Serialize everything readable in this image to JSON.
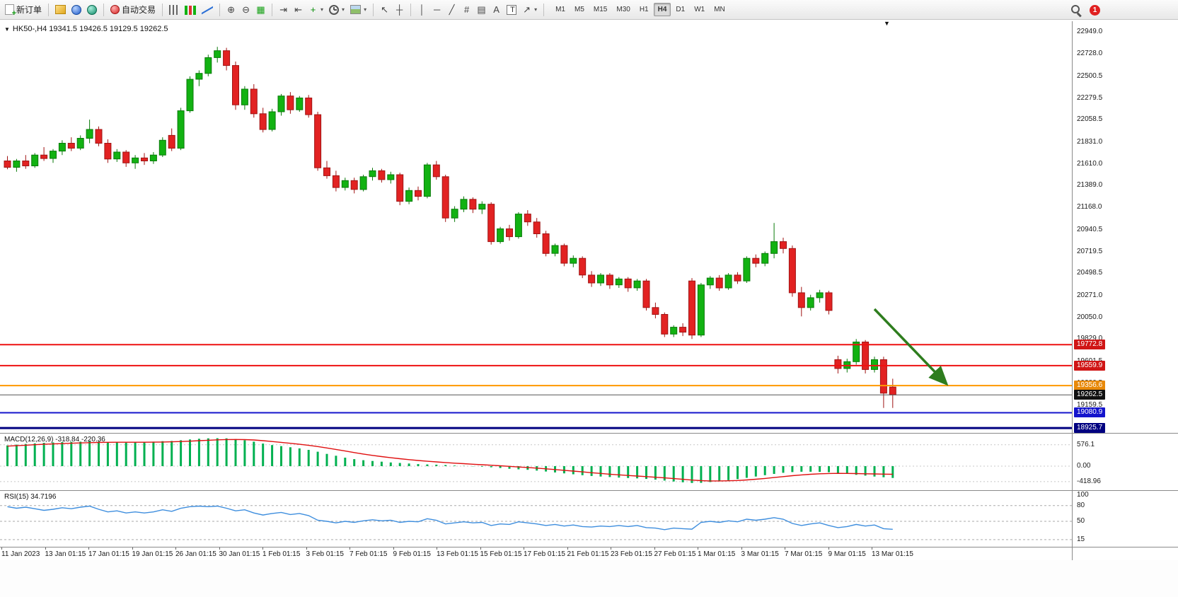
{
  "toolbar": {
    "items": [
      {
        "name": "new-order",
        "icon": "doc",
        "label": "新订单"
      },
      {
        "sep": true
      },
      {
        "name": "charts-panel",
        "icon": "gold"
      },
      {
        "name": "profiles",
        "icon": "blue-orb"
      },
      {
        "name": "market-watch",
        "icon": "teal-orb"
      },
      {
        "sep": true
      },
      {
        "name": "autotrading",
        "icon": "red-dot",
        "label": "自动交易"
      },
      {
        "sep": true
      },
      {
        "name": "bar-chart",
        "icon": "bars"
      },
      {
        "name": "candlestick-chart",
        "icon": "candles"
      },
      {
        "name": "line-chart",
        "icon": "linechart"
      },
      {
        "sep": true
      },
      {
        "name": "zoom-in",
        "glyph": "⊕"
      },
      {
        "name": "zoom-out",
        "glyph": "⊖"
      },
      {
        "name": "tile-windows",
        "glyph": "▦",
        "glyph_color": "#14A014"
      },
      {
        "sep": true
      },
      {
        "name": "auto-scroll",
        "glyph": "⇥"
      },
      {
        "name": "chart-shift",
        "glyph": "⇤"
      },
      {
        "name": "indicators",
        "glyph": "+",
        "glyph_color": "#0B8F0B",
        "caret": true
      },
      {
        "name": "periods",
        "icon": "clock",
        "caret": true
      },
      {
        "name": "templates",
        "icon": "image",
        "caret": true
      },
      {
        "sep": true
      },
      {
        "name": "cursor",
        "glyph": "↖"
      },
      {
        "name": "crosshair",
        "glyph": "┼"
      },
      {
        "sep": true
      },
      {
        "name": "vertical-line-tool",
        "glyph": "│"
      },
      {
        "name": "horizontal-line-tool",
        "glyph": "─"
      },
      {
        "name": "trendline-tool",
        "glyph": "╱"
      },
      {
        "name": "fibonacci-tool",
        "glyph": "#"
      },
      {
        "name": "grid-tool",
        "glyph": "▤"
      },
      {
        "name": "text-tool",
        "glyph": "A"
      },
      {
        "name": "label-tool",
        "icon": "label"
      },
      {
        "name": "arrows-tool",
        "glyph": "↗",
        "caret": true
      },
      {
        "sep": true
      }
    ],
    "timeframes": [
      "M1",
      "M5",
      "M15",
      "M30",
      "H1",
      "H4",
      "D1",
      "W1",
      "MN"
    ],
    "active_timeframe": "H4",
    "notification_count": "1"
  },
  "chart": {
    "ohlc_header": "HK50-,H4 19341.5 19426.5 19129.5 19262.5",
    "expand_glyph": "▼",
    "marker_glyph": "▼",
    "macd_label": "MACD(12,26,9) -318.84 -220.36",
    "rsi_label": "RSI(15) 34.7196"
  },
  "chart_data": [
    {
      "type": "candlestick",
      "title": "HK50-,H4",
      "timeframe": "H4",
      "open": 19341.5,
      "high": 19426.5,
      "low": 19129.5,
      "close": 19262.5,
      "ylim": [
        18876,
        23060
      ],
      "colors": {
        "up": "#12B212",
        "up_border": "#0A7A0A",
        "down": "#E22222",
        "down_border": "#A01414"
      },
      "y_ticks": [
        22949.0,
        22728.0,
        22500.5,
        22279.5,
        22058.5,
        21831.0,
        21610.0,
        21389.0,
        21168.0,
        20940.5,
        20719.5,
        20498.5,
        20271.0,
        20050.0,
        19829.0,
        19601.5,
        19380.5,
        19159.5
      ],
      "x_labels": [
        "11 Jan 2023",
        "13 Jan 01:15",
        "17 Jan 01:15",
        "19 Jan 01:15",
        "26 Jan 01:15",
        "30 Jan 01:15",
        "1 Feb 01:15",
        "3 Feb 01:15",
        "7 Feb 01:15",
        "9 Feb 01:15",
        "13 Feb 01:15",
        "15 Feb 01:15",
        "17 Feb 01:15",
        "21 Feb 01:15",
        "23 Feb 01:15",
        "27 Feb 01:15",
        "1 Mar 01:15",
        "3 Mar 01:15",
        "7 Mar 01:15",
        "9 Mar 01:15",
        "13 Mar 01:15"
      ],
      "hlines": [
        {
          "price": 19772.8,
          "label": "19772.8",
          "color": "#EE1111",
          "bg": "#D01616",
          "width": 2
        },
        {
          "price": 19559.9,
          "label": "19559.9",
          "color": "#EE1111",
          "bg": "#D01616",
          "width": 2
        },
        {
          "price": 19356.6,
          "label": "19356.6",
          "color": "#FF9800",
          "bg": "#E8890A",
          "width": 2
        },
        {
          "price": 19262.5,
          "label": "19262.5",
          "color": "#555555",
          "bg": "#111111",
          "width": 1
        },
        {
          "price": 19080.9,
          "label": "19080.9",
          "color": "#1414CC",
          "bg": "#1414CC",
          "width": 2
        },
        {
          "price": 18925.7,
          "label": "18925.7",
          "color": "#000080",
          "bg": "#000080",
          "width": 3
        }
      ],
      "arrow": {
        "from": [
          1236,
          437
        ],
        "to": [
          1338,
          543
        ],
        "color": "#2E7D1E"
      },
      "ohlc": [
        [
          21640,
          21690,
          21555,
          21575
        ],
        [
          21575,
          21660,
          21530,
          21640
        ],
        [
          21640,
          21700,
          21560,
          21590
        ],
        [
          21590,
          21720,
          21570,
          21700
        ],
        [
          21700,
          21780,
          21640,
          21665
        ],
        [
          21665,
          21760,
          21620,
          21740
        ],
        [
          21740,
          21850,
          21700,
          21820
        ],
        [
          21820,
          21880,
          21740,
          21770
        ],
        [
          21770,
          21900,
          21750,
          21870
        ],
        [
          21870,
          22060,
          21820,
          21960
        ],
        [
          21960,
          21990,
          21790,
          21820
        ],
        [
          21820,
          21860,
          21620,
          21660
        ],
        [
          21660,
          21760,
          21630,
          21730
        ],
        [
          21730,
          21750,
          21580,
          21620
        ],
        [
          21620,
          21700,
          21560,
          21670
        ],
        [
          21670,
          21720,
          21600,
          21640
        ],
        [
          21640,
          21730,
          21610,
          21700
        ],
        [
          21700,
          21880,
          21680,
          21850
        ],
        [
          21900,
          21970,
          21740,
          21770
        ],
        [
          21770,
          22180,
          21750,
          22150
        ],
        [
          22150,
          22500,
          22130,
          22470
        ],
        [
          22470,
          22560,
          22400,
          22530
        ],
        [
          22530,
          22720,
          22500,
          22690
        ],
        [
          22690,
          22800,
          22640,
          22760
        ],
        [
          22760,
          22790,
          22560,
          22610
        ],
        [
          22610,
          22650,
          22160,
          22210
        ],
        [
          22210,
          22400,
          22160,
          22370
        ],
        [
          22370,
          22420,
          22080,
          22120
        ],
        [
          22120,
          22180,
          21930,
          21960
        ],
        [
          21960,
          22170,
          21940,
          22140
        ],
        [
          22140,
          22320,
          22100,
          22300
        ],
        [
          22300,
          22340,
          22120,
          22160
        ],
        [
          22160,
          22300,
          22140,
          22280
        ],
        [
          22280,
          22310,
          22080,
          22110
        ],
        [
          22110,
          22140,
          21540,
          21570
        ],
        [
          21570,
          21640,
          21460,
          21490
        ],
        [
          21490,
          21540,
          21330,
          21370
        ],
        [
          21370,
          21470,
          21340,
          21440
        ],
        [
          21440,
          21470,
          21310,
          21350
        ],
        [
          21350,
          21500,
          21330,
          21480
        ],
        [
          21480,
          21570,
          21440,
          21540
        ],
        [
          21540,
          21560,
          21420,
          21450
        ],
        [
          21450,
          21530,
          21410,
          21500
        ],
        [
          21500,
          21520,
          21190,
          21230
        ],
        [
          21230,
          21370,
          21200,
          21340
        ],
        [
          21340,
          21380,
          21240,
          21280
        ],
        [
          21280,
          21620,
          21260,
          21600
        ],
        [
          21600,
          21640,
          21450,
          21480
        ],
        [
          21480,
          21500,
          21020,
          21060
        ],
        [
          21060,
          21180,
          21020,
          21150
        ],
        [
          21150,
          21280,
          21120,
          21250
        ],
        [
          21250,
          21270,
          21110,
          21150
        ],
        [
          21150,
          21230,
          21100,
          21200
        ],
        [
          21200,
          21220,
          20790,
          20820
        ],
        [
          20820,
          20970,
          20800,
          20950
        ],
        [
          20950,
          20990,
          20830,
          20870
        ],
        [
          20870,
          21120,
          20850,
          21100
        ],
        [
          21100,
          21140,
          20980,
          21020
        ],
        [
          21020,
          21060,
          20860,
          20900
        ],
        [
          20900,
          20930,
          20670,
          20700
        ],
        [
          20700,
          20800,
          20670,
          20780
        ],
        [
          20780,
          20800,
          20570,
          20600
        ],
        [
          20600,
          20680,
          20560,
          20650
        ],
        [
          20650,
          20670,
          20450,
          20480
        ],
        [
          20480,
          20520,
          20360,
          20400
        ],
        [
          20400,
          20500,
          20370,
          20480
        ],
        [
          20480,
          20500,
          20340,
          20380
        ],
        [
          20380,
          20460,
          20350,
          20440
        ],
        [
          20440,
          20460,
          20310,
          20350
        ],
        [
          20350,
          20440,
          20320,
          20420
        ],
        [
          20420,
          20440,
          20120,
          20150
        ],
        [
          20150,
          20200,
          20040,
          20080
        ],
        [
          20080,
          20100,
          19850,
          19880
        ],
        [
          19880,
          19970,
          19850,
          19950
        ],
        [
          19950,
          19990,
          19860,
          19900
        ],
        [
          20420,
          20450,
          19830,
          19870
        ],
        [
          19870,
          20400,
          19850,
          20380
        ],
        [
          20380,
          20470,
          20340,
          20450
        ],
        [
          20450,
          20480,
          20320,
          20350
        ],
        [
          20350,
          20500,
          20330,
          20480
        ],
        [
          20480,
          20510,
          20390,
          20420
        ],
        [
          20420,
          20670,
          20400,
          20650
        ],
        [
          20650,
          20690,
          20560,
          20600
        ],
        [
          20600,
          20720,
          20570,
          20700
        ],
        [
          20700,
          21010,
          20650,
          20820
        ],
        [
          20820,
          20860,
          20700,
          20750
        ],
        [
          20750,
          20780,
          20260,
          20300
        ],
        [
          20300,
          20360,
          20060,
          20150
        ],
        [
          20150,
          20280,
          20120,
          20250
        ],
        [
          20250,
          20330,
          20200,
          20300
        ],
        [
          20300,
          20320,
          20080,
          20120
        ],
        [
          19620,
          19660,
          19480,
          19530
        ],
        [
          19530,
          19630,
          19490,
          19600
        ],
        [
          19600,
          19830,
          19570,
          19800
        ],
        [
          19800,
          19820,
          19480,
          19520
        ],
        [
          19520,
          19650,
          19490,
          19620
        ],
        [
          19620,
          19650,
          19130,
          19280
        ],
        [
          19341.5,
          19426.5,
          19129.5,
          19262.5
        ]
      ]
    },
    {
      "type": "bar",
      "name": "MACD(12,26,9)",
      "last_values": {
        "macd": -318.84,
        "signal": -220.36
      },
      "y_ticks": [
        576.1,
        0,
        -418.96
      ],
      "y_tick_labels": [
        "576.1",
        "0.00",
        "-418.96"
      ],
      "colors": {
        "histogram": "#00B050",
        "signal": "#E01010"
      },
      "values": [
        560,
        580,
        600,
        615,
        630,
        640,
        650,
        655,
        660,
        670,
        665,
        650,
        640,
        635,
        640,
        650,
        660,
        675,
        680,
        700,
        720,
        740,
        750,
        755,
        750,
        730,
        700,
        660,
        610,
        570,
        540,
        510,
        480,
        440,
        390,
        330,
        280,
        230,
        190,
        160,
        140,
        120,
        100,
        85,
        70,
        55,
        45,
        40,
        30,
        15,
        5,
        -5,
        -15,
        -30,
        -50,
        -70,
        -85,
        -100,
        -120,
        -145,
        -170,
        -195,
        -220,
        -245,
        -265,
        -280,
        -295,
        -310,
        -320,
        -330,
        -345,
        -365,
        -390,
        -415,
        -435,
        -455,
        -450,
        -430,
        -405,
        -380,
        -350,
        -315,
        -280,
        -245,
        -210,
        -180,
        -160,
        -150,
        -150,
        -155,
        -165,
        -185,
        -210,
        -235,
        -255,
        -280,
        -300,
        -318.84
      ],
      "series": [
        {
          "name": "signal",
          "values": [
            540,
            552,
            565,
            578,
            590,
            600,
            610,
            618,
            626,
            634,
            640,
            644,
            646,
            646,
            646,
            646,
            648,
            652,
            657,
            665,
            675,
            687,
            699,
            710,
            718,
            720,
            717,
            706,
            688,
            665,
            641,
            616,
            590,
            561,
            529,
            491,
            450,
            408,
            366,
            327,
            291,
            258,
            228,
            201,
            176,
            153,
            132,
            114,
            97,
            81,
            66,
            52,
            39,
            25,
            10,
            -6,
            -22,
            -37,
            -54,
            -72,
            -91,
            -112,
            -133,
            -155,
            -177,
            -197,
            -217,
            -235,
            -252,
            -268,
            -283,
            -299,
            -317,
            -337,
            -356,
            -376,
            -391,
            -399,
            -400,
            -396,
            -387,
            -372,
            -354,
            -332,
            -308,
            -282,
            -258,
            -236,
            -219,
            -206,
            -198,
            -195,
            -196,
            -201,
            -206,
            -210,
            -215,
            -220.36
          ]
        }
      ]
    },
    {
      "type": "line",
      "name": "RSI(15)",
      "last_value": 34.7196,
      "ylim": [
        0,
        100
      ],
      "levels": [
        80,
        50,
        15
      ],
      "y_ticks": [
        100,
        80,
        50,
        15
      ],
      "y_tick_labels": [
        "100",
        "80",
        "50",
        "15"
      ],
      "color": "#3E8EDE",
      "values": [
        78,
        75,
        77,
        74,
        71,
        73,
        76,
        74,
        77,
        79,
        73,
        68,
        70,
        66,
        68,
        66,
        68,
        72,
        69,
        75,
        78,
        79,
        78,
        79,
        75,
        70,
        72,
        66,
        62,
        65,
        67,
        63,
        65,
        61,
        52,
        50,
        47,
        50,
        48,
        51,
        53,
        51,
        52,
        48,
        50,
        49,
        55,
        52,
        45,
        47,
        49,
        47,
        48,
        42,
        45,
        44,
        49,
        47,
        45,
        42,
        44,
        41,
        43,
        40,
        39,
        41,
        40,
        42,
        40,
        42,
        38,
        37,
        34,
        37,
        36,
        35,
        48,
        50,
        48,
        51,
        49,
        54,
        52,
        54,
        57,
        54,
        46,
        42,
        45,
        47,
        42,
        38,
        40,
        44,
        41,
        43,
        36,
        34.7196
      ]
    }
  ]
}
